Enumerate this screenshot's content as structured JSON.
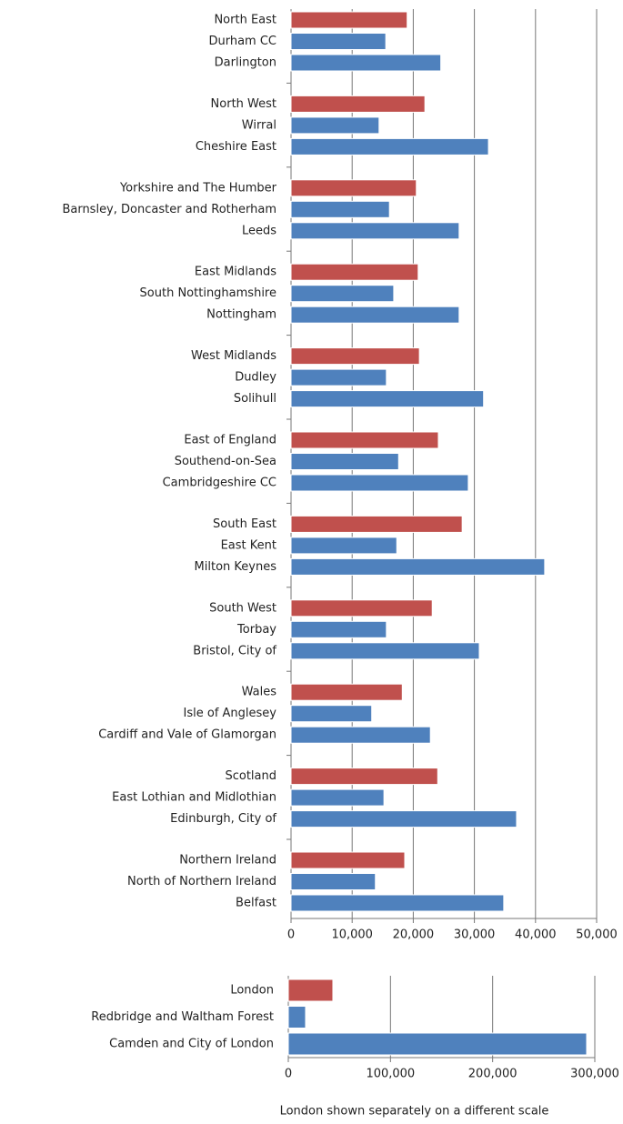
{
  "chart_data": [
    {
      "type": "barh",
      "categories": [
        "North East",
        "Durham CC",
        "Darlington",
        "North West",
        "Wirral",
        "Cheshire East",
        "Yorkshire and The Humber",
        "Barnsley, Doncaster and Rotherham",
        "Leeds",
        "East Midlands",
        "South Nottinghamshire",
        "Nottingham",
        "West Midlands",
        "Dudley",
        "Solihull",
        "East of England",
        "Southend-on-Sea",
        "Cambridgeshire CC",
        "South East",
        "East Kent",
        "Milton Keynes",
        "South West",
        "Torbay",
        "Bristol, City of",
        "Wales",
        "Isle of Anglesey",
        "Cardiff and Vale of Glamorgan",
        "Scotland",
        "East Lothian and Midlothian",
        "Edinburgh, City of",
        "Northern Ireland",
        "North of Northern Ireland",
        "Belfast"
      ],
      "values": [
        19000,
        15500,
        24500,
        21900,
        14400,
        32300,
        20500,
        16100,
        27500,
        20800,
        16800,
        27500,
        21000,
        15600,
        31500,
        24100,
        17600,
        29000,
        28000,
        17300,
        41500,
        23100,
        15600,
        30800,
        18200,
        13200,
        22800,
        24000,
        15200,
        36900,
        18600,
        13800,
        34800
      ],
      "colors": [
        "#c0504d",
        "#4f81bd",
        "#4f81bd",
        "#c0504d",
        "#4f81bd",
        "#4f81bd",
        "#c0504d",
        "#4f81bd",
        "#4f81bd",
        "#c0504d",
        "#4f81bd",
        "#4f81bd",
        "#c0504d",
        "#4f81bd",
        "#4f81bd",
        "#c0504d",
        "#4f81bd",
        "#4f81bd",
        "#c0504d",
        "#4f81bd",
        "#4f81bd",
        "#c0504d",
        "#4f81bd",
        "#4f81bd",
        "#c0504d",
        "#4f81bd",
        "#4f81bd",
        "#c0504d",
        "#4f81bd",
        "#4f81bd",
        "#c0504d",
        "#4f81bd",
        "#4f81bd"
      ],
      "xlim": [
        0,
        50000
      ],
      "xticks": [
        0,
        {
          "value": 10000,
          "label": "10,000"
        },
        {
          "value": 20000,
          "label": "20,000"
        },
        {
          "value": 30000,
          "label": "30,000"
        },
        {
          "value": 40000,
          "label": "40,000"
        },
        {
          "value": 50000,
          "label": "50,000"
        }
      ],
      "grid": true
    },
    {
      "type": "barh",
      "categories": [
        "London",
        "Redbridge and Waltham Forest",
        "Camden and City of London"
      ],
      "values": [
        43600,
        16900,
        292000
      ],
      "colors": [
        "#c0504d",
        "#4f81bd",
        "#4f81bd"
      ],
      "xlim": [
        0,
        300000
      ],
      "xticks": [
        0,
        {
          "value": 100000,
          "label": "100,000"
        },
        {
          "value": 200000,
          "label": "200,000"
        },
        {
          "value": 300000,
          "label": "300,000"
        }
      ],
      "xlabel": "London shown separately on a different scale",
      "grid": true
    }
  ]
}
